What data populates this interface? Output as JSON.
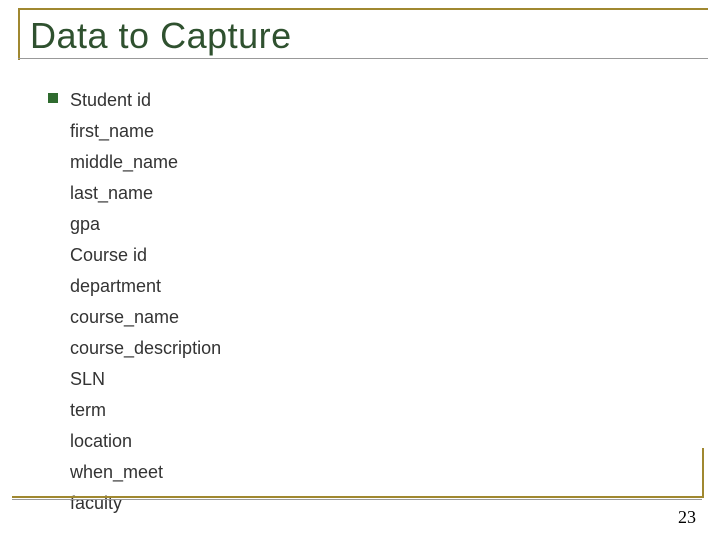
{
  "slide": {
    "title": "Data to Capture",
    "title_color": "#2f512f",
    "title_fontsize": 36,
    "accent_color": "#a08830",
    "bullet_color": "#2f6b2f",
    "text_color": "#333333",
    "body_fontsize": 18,
    "background_color": "#ffffff",
    "items": [
      "Student id",
      "first_name",
      "middle_name",
      "last_name",
      "gpa",
      "Course id",
      "department",
      "course_name",
      "course_description",
      "SLN",
      "term",
      "location",
      "when_meet",
      "faculty"
    ],
    "page_number": "23",
    "page_number_color": "#000000",
    "page_number_fontsize": 18
  }
}
